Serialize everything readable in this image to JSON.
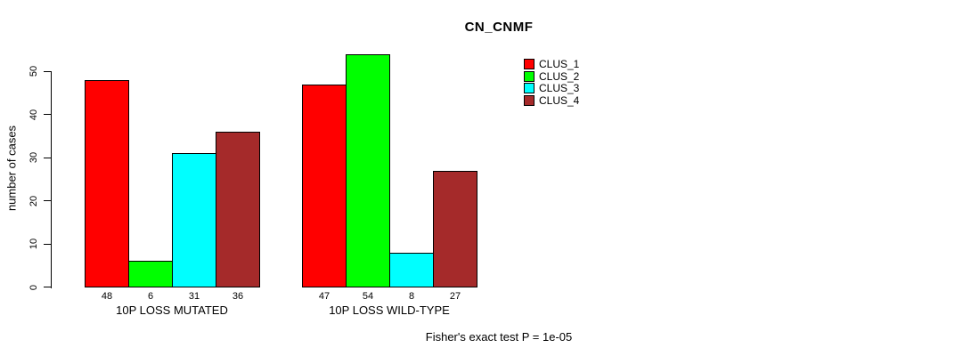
{
  "title": "CN_CNMF",
  "y_axis": {
    "label": "number of cases"
  },
  "footer": "Fisher's exact test P = 1e-05",
  "chart_data": {
    "type": "bar",
    "title": "CN_CNMF",
    "xlabel": "",
    "ylabel": "number of cases",
    "ylim": [
      0,
      50
    ],
    "yticks": [
      0,
      10,
      20,
      30,
      40,
      50
    ],
    "grid": false,
    "bar_borders": "black",
    "show_values_under_bars": true,
    "categories": [
      "10P LOSS MUTATED",
      "10P LOSS WILD-TYPE"
    ],
    "series": [
      {
        "name": "CLUS_1",
        "color": "#FF0000",
        "values": [
          48,
          47
        ]
      },
      {
        "name": "CLUS_2",
        "color": "#00FF00",
        "values": [
          6,
          54
        ]
      },
      {
        "name": "CLUS_3",
        "color": "#00FFFF",
        "values": [
          31,
          8
        ]
      },
      {
        "name": "CLUS_4",
        "color": "#A52A2A",
        "values": [
          36,
          27
        ]
      }
    ],
    "legend": {
      "position": "top-right",
      "entries": [
        "CLUS_1",
        "CLUS_2",
        "CLUS_3",
        "CLUS_4"
      ]
    },
    "annotation": "Fisher's exact test P = 1e-05"
  }
}
